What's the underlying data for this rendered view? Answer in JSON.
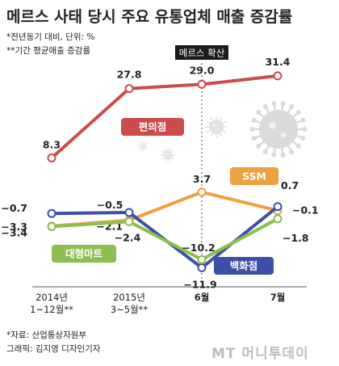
{
  "header": {
    "title": "메르스 사태 당시 주요 유통업체 매출 증감률",
    "note1": "*전년동기 대비, 단위: %",
    "note2": "**기간 평균매출 증감률"
  },
  "chart_data": {
    "type": "line",
    "title": "메르스 사태 당시 주요 유통업체 매출 증감률",
    "categories": [
      "2014년\n1~12월**",
      "2015년\n3~5월**",
      "6월",
      "7월"
    ],
    "annotation": "메르스 확산",
    "series": [
      {
        "name": "편의점",
        "color": "#cc4b4b",
        "values": [
          8.3,
          27.8,
          29.0,
          31.4
        ],
        "labels": [
          "8.3",
          "27.8",
          "29.0",
          "31.4"
        ]
      },
      {
        "name": "SSM",
        "color": "#f0a040",
        "values": [
          -3.3,
          -2.1,
          3.7,
          -0.1
        ],
        "labels": [
          "−3.3",
          "−2.1",
          "3.7",
          "−0.1"
        ]
      },
      {
        "name": "백화점",
        "color": "#3d4fa8",
        "values": [
          -0.7,
          -0.5,
          -11.9,
          0.7
        ],
        "labels": [
          "−0.7",
          "−0.5",
          "−11.9",
          "0.7"
        ]
      },
      {
        "name": "대형마트",
        "color": "#8cbe50",
        "values": [
          -3.4,
          -2.4,
          -10.2,
          -1.8
        ],
        "labels": [
          "−3.4",
          "−2.4",
          "−10.2",
          "−1.8"
        ]
      }
    ]
  },
  "footer": {
    "source": "*자료: 산업통상자원부",
    "credit": "그래픽: 김지영 디자인기자",
    "brand": "MT 머니투데이"
  }
}
